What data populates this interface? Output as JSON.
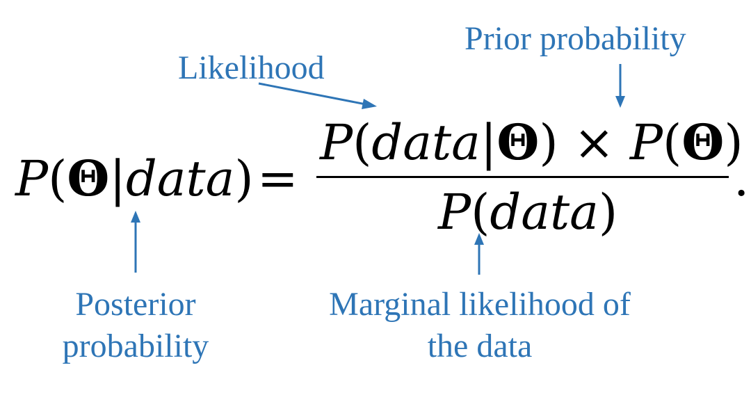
{
  "labels": {
    "likelihood": "Likelihood",
    "prior": "Prior probability",
    "posterior_line1": "Posterior",
    "posterior_line2": "probability",
    "marginal_line1": "Marginal likelihood of",
    "marginal_line2": "the data"
  },
  "equation": {
    "P": "P",
    "open": "(",
    "close": ")",
    "theta": "Θ",
    "bar": "|",
    "data": "data",
    "equals": "=",
    "times": "×",
    "period": "."
  },
  "colors": {
    "annotation": "#2e75b6",
    "math": "#000000"
  }
}
